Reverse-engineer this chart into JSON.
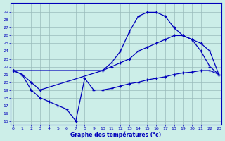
{
  "title": "Graphe des températures (°c)",
  "bg_color": "#cceee8",
  "line_color": "#0000bb",
  "grid_color": "#99bbbb",
  "ylabel_values": [
    15,
    16,
    17,
    18,
    19,
    20,
    21,
    22,
    23,
    24,
    25,
    26,
    27,
    28,
    29
  ],
  "xlabel_values": [
    0,
    1,
    2,
    3,
    4,
    5,
    6,
    7,
    8,
    9,
    10,
    11,
    12,
    13,
    14,
    15,
    16,
    17,
    18,
    19,
    20,
    21,
    22,
    23
  ],
  "series1_x": [
    0,
    1,
    2,
    3,
    10,
    11,
    12,
    13,
    14,
    15,
    16,
    17,
    18,
    19,
    20,
    21,
    22,
    23
  ],
  "series1_y": [
    21.5,
    21.0,
    20.0,
    19.0,
    21.5,
    22.5,
    24.0,
    26.5,
    28.5,
    29.0,
    29.0,
    28.5,
    27.0,
    26.0,
    25.5,
    24.0,
    22.0,
    21.0
  ],
  "series2_x": [
    0,
    10,
    11,
    12,
    13,
    14,
    15,
    16,
    17,
    18,
    19,
    20,
    21,
    22,
    23
  ],
  "series2_y": [
    21.5,
    21.5,
    22.0,
    22.5,
    23.0,
    24.0,
    24.5,
    25.0,
    25.5,
    26.0,
    26.0,
    25.5,
    25.0,
    24.0,
    21.0
  ],
  "series3_x": [
    0,
    1,
    2,
    3,
    4,
    5,
    6,
    7,
    8,
    9,
    10,
    11,
    12,
    13,
    14,
    15,
    16,
    17,
    18,
    19,
    20,
    21,
    22,
    23
  ],
  "series3_y": [
    21.5,
    21.0,
    19.0,
    18.0,
    17.5,
    17.0,
    16.5,
    15.0,
    20.5,
    19.0,
    19.0,
    19.2,
    19.5,
    19.8,
    20.0,
    20.3,
    20.5,
    20.7,
    21.0,
    21.2,
    21.3,
    21.5,
    21.5,
    21.0
  ],
  "xlim": [
    -0.3,
    23.3
  ],
  "ylim": [
    14.5,
    30.2
  ],
  "figsize": [
    3.2,
    2.0
  ],
  "dpi": 100
}
